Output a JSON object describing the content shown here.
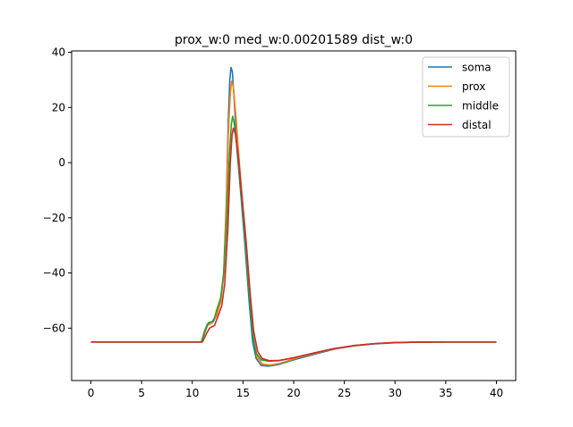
{
  "chart_data": {
    "type": "line",
    "title": "prox_w:0 med_w:0.00201589 dist_w:0",
    "xlabel": "",
    "ylabel": "",
    "xlim": [
      -1.9,
      41.9
    ],
    "ylim": [
      -79,
      40.5
    ],
    "xticks": [
      0,
      5,
      10,
      15,
      20,
      25,
      30,
      35,
      40
    ],
    "yticks": [
      40,
      20,
      0,
      -20,
      -40,
      -60
    ],
    "ytick_labels": [
      "40",
      "20",
      "0",
      "−20",
      "−40",
      "−60"
    ],
    "grid": false,
    "legend_position": "top-right",
    "series": [
      {
        "name": "soma",
        "color": "#1f77b4",
        "points": [
          [
            0,
            -65
          ],
          [
            10.9,
            -65
          ],
          [
            11.2,
            -61
          ],
          [
            11.5,
            -58.5
          ],
          [
            12,
            -57.5
          ],
          [
            12.4,
            -55
          ],
          [
            12.8,
            -50
          ],
          [
            13.1,
            -40
          ],
          [
            13.35,
            -15
          ],
          [
            13.55,
            15
          ],
          [
            13.7,
            30
          ],
          [
            13.82,
            34.5
          ],
          [
            13.95,
            33
          ],
          [
            14.15,
            22
          ],
          [
            14.4,
            5
          ],
          [
            14.8,
            -12
          ],
          [
            15.2,
            -30
          ],
          [
            15.6,
            -50
          ],
          [
            15.95,
            -65
          ],
          [
            16.3,
            -71
          ],
          [
            16.8,
            -73.5
          ],
          [
            17.5,
            -73.8
          ],
          [
            18.5,
            -73.2
          ],
          [
            20,
            -71.5
          ],
          [
            22,
            -69.5
          ],
          [
            24,
            -67.6
          ],
          [
            26,
            -66.4
          ],
          [
            28,
            -65.7
          ],
          [
            30,
            -65.3
          ],
          [
            32,
            -65.1
          ],
          [
            35,
            -65
          ],
          [
            40,
            -65
          ]
        ]
      },
      {
        "name": "prox",
        "color": "#ff7f0e",
        "points": [
          [
            0,
            -65
          ],
          [
            10.9,
            -65
          ],
          [
            11.2,
            -61.5
          ],
          [
            11.5,
            -59
          ],
          [
            12,
            -58
          ],
          [
            12.4,
            -55.5
          ],
          [
            12.8,
            -50.5
          ],
          [
            13.1,
            -41
          ],
          [
            13.35,
            -18
          ],
          [
            13.55,
            10
          ],
          [
            13.75,
            25
          ],
          [
            13.88,
            29.5
          ],
          [
            14.05,
            27.5
          ],
          [
            14.3,
            17
          ],
          [
            14.6,
            2
          ],
          [
            14.9,
            -12
          ],
          [
            15.3,
            -30
          ],
          [
            15.7,
            -50
          ],
          [
            16.05,
            -64
          ],
          [
            16.4,
            -70.5
          ],
          [
            16.9,
            -73
          ],
          [
            17.6,
            -73.4
          ],
          [
            18.6,
            -72.8
          ],
          [
            20,
            -71.2
          ],
          [
            22,
            -69.2
          ],
          [
            24,
            -67.5
          ],
          [
            26,
            -66.3
          ],
          [
            28,
            -65.6
          ],
          [
            30,
            -65.2
          ],
          [
            32,
            -65.1
          ],
          [
            35,
            -65
          ],
          [
            40,
            -65
          ]
        ]
      },
      {
        "name": "middle",
        "color": "#2ca02c",
        "points": [
          [
            0,
            -65
          ],
          [
            10.9,
            -65
          ],
          [
            11.3,
            -61
          ],
          [
            11.6,
            -58
          ],
          [
            12.1,
            -57.5
          ],
          [
            12.4,
            -53.5
          ],
          [
            12.8,
            -49
          ],
          [
            13.1,
            -40
          ],
          [
            13.4,
            -22
          ],
          [
            13.65,
            2
          ],
          [
            13.85,
            14
          ],
          [
            13.98,
            16.8
          ],
          [
            14.15,
            14
          ],
          [
            14.45,
            4
          ],
          [
            14.8,
            -10
          ],
          [
            15.2,
            -27
          ],
          [
            15.6,
            -47
          ],
          [
            15.95,
            -62
          ],
          [
            16.3,
            -69
          ],
          [
            16.8,
            -71.5
          ],
          [
            17.5,
            -72
          ],
          [
            18.5,
            -71.8
          ],
          [
            20,
            -70.8
          ],
          [
            22,
            -69
          ],
          [
            24,
            -67.4
          ],
          [
            26,
            -66.3
          ],
          [
            28,
            -65.6
          ],
          [
            30,
            -65.2
          ],
          [
            32,
            -65.1
          ],
          [
            35,
            -65
          ],
          [
            40,
            -65
          ]
        ]
      },
      {
        "name": "distal",
        "color": "#d62728",
        "points": [
          [
            0,
            -65
          ],
          [
            11,
            -65
          ],
          [
            11.4,
            -62
          ],
          [
            11.7,
            -60
          ],
          [
            12.2,
            -59
          ],
          [
            12.5,
            -56
          ],
          [
            12.9,
            -52
          ],
          [
            13.2,
            -44
          ],
          [
            13.5,
            -25
          ],
          [
            13.75,
            0
          ],
          [
            13.92,
            10
          ],
          [
            14.05,
            12.5
          ],
          [
            14.25,
            10.5
          ],
          [
            14.55,
            2
          ],
          [
            14.9,
            -12
          ],
          [
            15.3,
            -28
          ],
          [
            15.7,
            -47
          ],
          [
            16.05,
            -61
          ],
          [
            16.45,
            -68.5
          ],
          [
            16.9,
            -71
          ],
          [
            17.6,
            -71.8
          ],
          [
            18.6,
            -71.7
          ],
          [
            20,
            -70.7
          ],
          [
            22,
            -69
          ],
          [
            24,
            -67.4
          ],
          [
            26,
            -66.3
          ],
          [
            28,
            -65.6
          ],
          [
            30,
            -65.2
          ],
          [
            32,
            -65.1
          ],
          [
            35,
            -65
          ],
          [
            40,
            -65
          ]
        ]
      }
    ]
  }
}
